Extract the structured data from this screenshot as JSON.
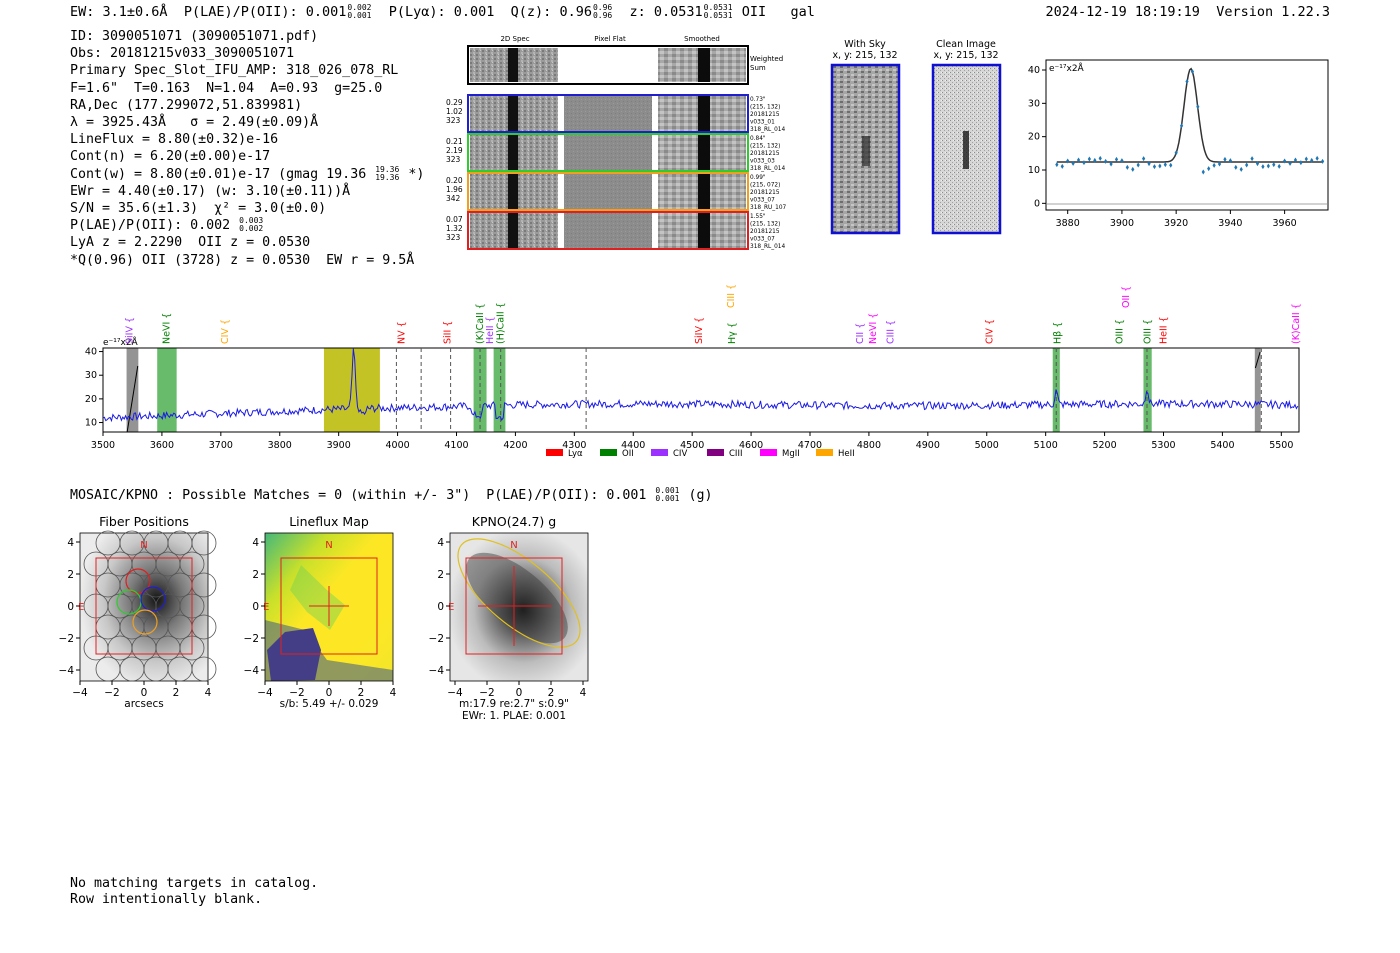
{
  "header": {
    "ew": "EW: 3.1±0.6Å",
    "plae_label": "P(LAE)/P(OII): 0.001",
    "plae_hi": "0.002",
    "plae_lo": "0.001",
    "plya": "P(Lyα): 0.001",
    "qz": "Q(z): 0.96",
    "qz_hi": "0.96",
    "qz_lo": "0.96",
    "z": "z: 0.0531",
    "z_hi": "0.0531",
    "z_lo": "0.0531",
    "line": "OII",
    "type": "gal",
    "timestamp": "2024-12-19 18:19:19",
    "version": "Version 1.22.3"
  },
  "info": {
    "id": "ID: 3090051071 (3090051071.pdf)",
    "obs": "Obs: 20181215v033_3090051071",
    "primary": "Primary Spec_Slot_IFU_AMP: 318_026_078_RL",
    "fit": "F=1.6\"  T=0.163  N=1.04  A=0.93  g=25.0",
    "radec": "RA,Dec (177.299072,51.839981)",
    "lambda": "λ = 3925.43Å   σ = 2.49(±0.09)Å",
    "lineflux": "LineFlux = 8.80(±0.32)e-16",
    "contn": "Cont(n) = 6.20(±0.00)e-17",
    "contw": "Cont(w) = 8.80(±0.01)e-17 (gmag 19.36",
    "contw_hi": "19.36",
    "contw_lo": "19.36",
    "contw_end": "*)",
    "ewr": "EWr = 4.40(±0.17) (w: 3.10(±0.11))Å",
    "sn": "S/N = 35.6(±1.3)  χ² = 3.0(±0.0)",
    "plae": "P(LAE)/P(OII): 0.002",
    "plae_hi": "0.003",
    "plae_lo": "0.002",
    "lya": "LyA z = 2.2290  OII z = 0.0530",
    "q": "*Q(0.96) OII (3728) z = 0.0530  EW r = 9.5Å"
  },
  "spec2d": {
    "headers": [
      "2D Spec",
      "Pixel Flat",
      "Smoothed"
    ],
    "weighted_label_1": "Weighted",
    "weighted_label_2": "Sum",
    "rows": [
      {
        "left": [
          "0.29",
          "1.02",
          "323"
        ],
        "right": [
          "0.73\"",
          "(215, 132)",
          "20181215",
          "v033_01",
          "318_RL_014"
        ],
        "color": "#1f1fd0"
      },
      {
        "left": [
          "0.21",
          "2.19",
          "323"
        ],
        "right": [
          "0.84\"",
          "(215, 132)",
          "20181215",
          "v033_03",
          "318_RL_014"
        ],
        "color": "#2ecc2e"
      },
      {
        "left": [
          "0.20",
          "1.96",
          "342"
        ],
        "right": [
          "0.99\"",
          "(215, 072)",
          "20181215",
          "v033_07",
          "318_RU_107"
        ],
        "color": "#f0a020"
      },
      {
        "left": [
          "0.07",
          "1.32",
          "323"
        ],
        "right": [
          "1.55\"",
          "(215, 132)",
          "20181215",
          "v033_07",
          "318_RL_014"
        ],
        "color": "#e02020"
      }
    ]
  },
  "cutouts": {
    "with_sky_title": "With Sky",
    "with_sky_coords": "x, y: 215, 132",
    "clean_title": "Clean Image",
    "clean_coords": "x, y: 215, 132"
  },
  "line_fit": {
    "unit": "e⁻¹⁷x2Å",
    "xticks": [
      "3880",
      "3900",
      "3920",
      "3940",
      "3960"
    ],
    "yticks": [
      "40",
      "30",
      "20",
      "10",
      "0"
    ]
  },
  "full_spectrum": {
    "unit": "e⁻¹⁷x2Å",
    "yticks": [
      "40",
      "30",
      "20",
      "10"
    ],
    "xticks": [
      "3500",
      "3600",
      "3700",
      "3800",
      "3900",
      "4000",
      "4100",
      "4200",
      "4300",
      "4400",
      "4500",
      "4600",
      "4700",
      "4800",
      "4900",
      "5000",
      "5100",
      "5200",
      "5300",
      "5400",
      "5500"
    ],
    "line_labels": [
      {
        "text": "SiIV",
        "color": "#9b30ff",
        "w": 3545
      },
      {
        "text": "NeVI",
        "color": "#008000",
        "w": 3608
      },
      {
        "text": "CIV",
        "color": "#ffa500",
        "w": 3707
      },
      {
        "text": "NV",
        "color": "#ff0000",
        "w": 4007
      },
      {
        "text": "SiII",
        "color": "#ff0000",
        "w": 4085
      },
      {
        "text": "(K)CaII",
        "color": "#008000",
        "w": 4140
      },
      {
        "text": "HeII",
        "color": "#9b30ff",
        "w": 4157
      },
      {
        "text": "(H)CaII",
        "color": "#008000",
        "w": 4175
      },
      {
        "text": "SiIV",
        "color": "#ff0000",
        "w": 4512
      },
      {
        "text": "Hγ",
        "color": "#008000",
        "w": 4568
      },
      {
        "text": "CII",
        "color": "#9b30ff",
        "w": 4785
      },
      {
        "text": "NeVI",
        "color": "#ff00ff",
        "w": 4807
      },
      {
        "text": "CIII",
        "color": "#9b30ff",
        "w": 4837
      },
      {
        "text": "CIV",
        "color": "#ff0000",
        "w": 5005
      },
      {
        "text": "Hβ",
        "color": "#008000",
        "w": 5120
      },
      {
        "text": "OIII",
        "color": "#008000",
        "w": 5225
      },
      {
        "text": "OIII",
        "color": "#008000",
        "w": 5273
      },
      {
        "text": "HeII",
        "color": "#ff0000",
        "w": 5300
      },
      {
        "text": "(K)CaII",
        "color": "#ff00ff",
        "w": 5525
      }
    ],
    "upper_labels": [
      {
        "text": "CIII",
        "color": "#ffa500",
        "w": 4566
      },
      {
        "text": "OII",
        "color": "#ff00ff",
        "w": 5236
      }
    ],
    "legend": [
      {
        "text": "Lyα",
        "color": "#ff0000"
      },
      {
        "text": "OII",
        "color": "#008000"
      },
      {
        "text": "CIV",
        "color": "#9b30ff"
      },
      {
        "text": "CIII",
        "color": "#800080"
      },
      {
        "text": "MgII",
        "color": "#ff00ff"
      },
      {
        "text": "HeII",
        "color": "#ffa500"
      }
    ]
  },
  "match_line": {
    "prefix": "MOSAIC/KPNO : Possible Matches = 0 (within +/- 3\")  P(LAE)/P(OII): 0.001",
    "hi": "0.001",
    "lo": "0.001",
    "suffix": "(g)"
  },
  "panels": {
    "fiber_title": "Fiber Positions",
    "fiber_xlabel": "arcsecs",
    "lineflux_title": "Lineflux Map",
    "lineflux_xlabel": "s/b: 5.49 +/- 0.029",
    "kpno_title": "KPNO(24.7) g",
    "kpno_xlabel_1": "m:17.9  re:2.7\"  s:0.9\"",
    "kpno_xlabel_2": "EWr: 1. PLAE: 0.001",
    "north": "N",
    "east": "E",
    "yticks": [
      "4",
      "2",
      "0",
      "−2",
      "−4"
    ],
    "xticks": [
      "−4",
      "−2",
      "0",
      "2",
      "4"
    ]
  },
  "footer": {
    "line1": "No matching targets in catalog.",
    "line2": "Row intentionally blank."
  }
}
